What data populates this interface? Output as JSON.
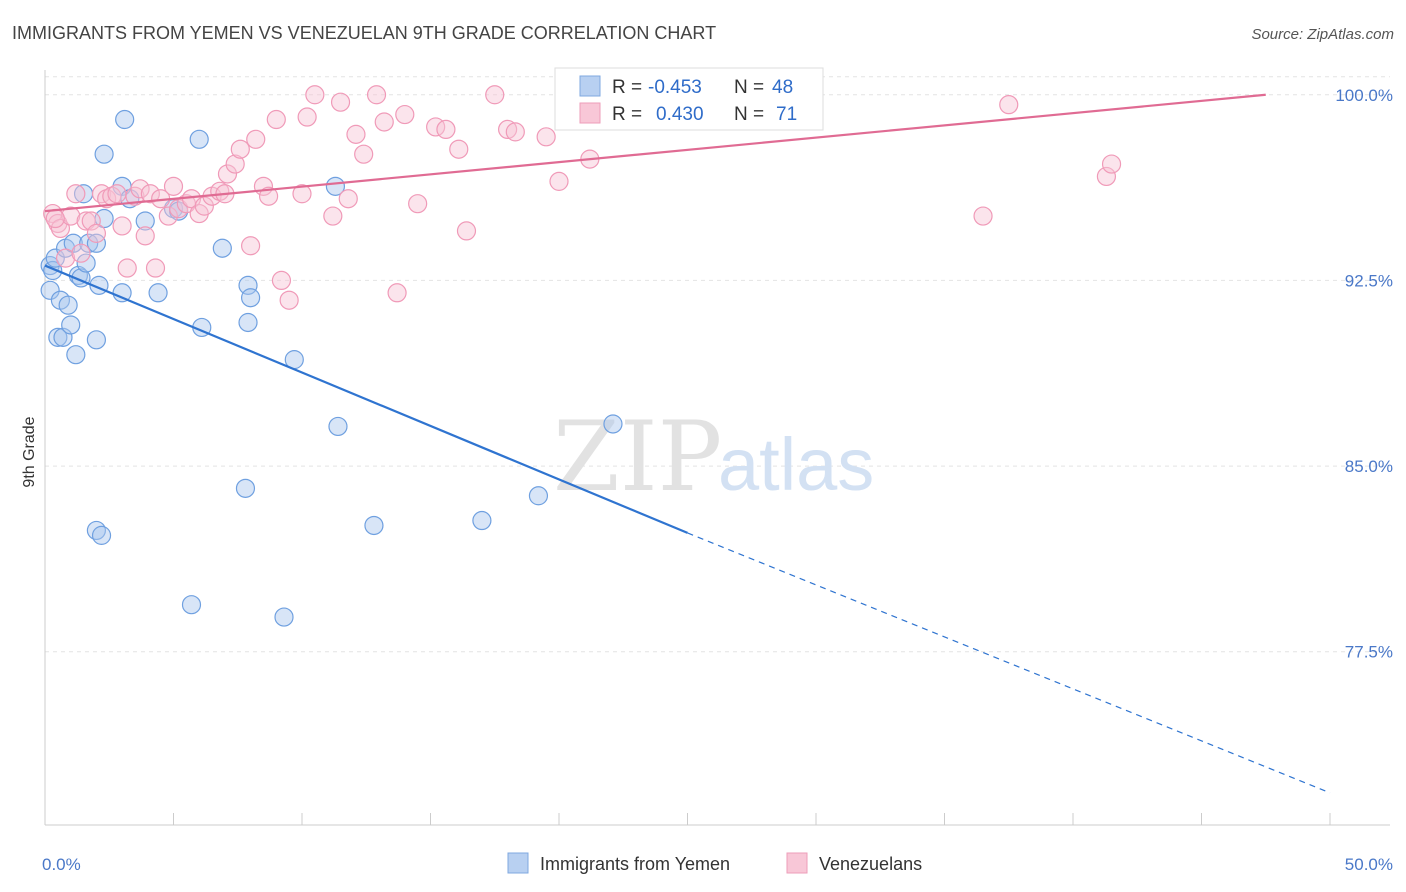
{
  "header": {
    "title": "IMMIGRANTS FROM YEMEN VS VENEZUELAN 9TH GRADE CORRELATION CHART",
    "source": "Source: ZipAtlas.com"
  },
  "watermark": {
    "zip": "ZIP",
    "atlas": "atlas"
  },
  "legend_box": {
    "rows": [
      {
        "r_label": "R = ",
        "r_value": "-0.453",
        "n_label": "N = ",
        "n_value": "48"
      },
      {
        "r_label": "R = ",
        "r_value": "0.430",
        "n_label": "N = ",
        "n_value": "71"
      }
    ]
  },
  "bottom_legend": {
    "items": [
      {
        "label": "Immigrants from Yemen"
      },
      {
        "label": "Venezuelans"
      }
    ]
  },
  "chart_data": {
    "type": "scatter",
    "title": "IMMIGRANTS FROM YEMEN VS VENEZUELAN 9TH GRADE CORRELATION CHART",
    "xlabel": "",
    "ylabel": "9th Grade",
    "xlim": [
      0,
      50
    ],
    "ylim": [
      70.5,
      101.0
    ],
    "x_tick_labels": [
      {
        "value": 0,
        "label": "0.0%"
      },
      {
        "value": 50,
        "label": "50.0%"
      }
    ],
    "y_tick_labels": [
      {
        "value": 100,
        "label": "100.0%"
      },
      {
        "value": 92.5,
        "label": "92.5%"
      },
      {
        "value": 85,
        "label": "85.0%"
      },
      {
        "value": 77.5,
        "label": "77.5%"
      }
    ],
    "grid": true,
    "legend_position": "top-center",
    "series": [
      {
        "name": "Immigrants from Yemen",
        "color": "#6fa0e0",
        "fill": "#a9c6ee",
        "line_color": "#2f74d0",
        "r": -0.453,
        "n": 48,
        "trend": {
          "x_start": 0,
          "y_start": 93.1,
          "x_solid_end": 25,
          "y_solid_end": 82.3,
          "x_dash_end": 50,
          "y_dash_end": 71.8
        },
        "points": [
          [
            0.2,
            93.1
          ],
          [
            0.3,
            92.9
          ],
          [
            0.4,
            93.4
          ],
          [
            0.2,
            92.1
          ],
          [
            0.6,
            91.7
          ],
          [
            0.5,
            90.2
          ],
          [
            0.9,
            91.5
          ],
          [
            0.7,
            90.2
          ],
          [
            1.0,
            90.7
          ],
          [
            1.2,
            89.5
          ],
          [
            0.8,
            93.8
          ],
          [
            1.1,
            94.0
          ],
          [
            1.3,
            92.7
          ],
          [
            1.4,
            92.6
          ],
          [
            1.5,
            96.0
          ],
          [
            1.6,
            93.2
          ],
          [
            1.7,
            94.0
          ],
          [
            2.0,
            94.0
          ],
          [
            2.0,
            90.1
          ],
          [
            2.1,
            92.3
          ],
          [
            2.3,
            95.0
          ],
          [
            2.3,
            97.6
          ],
          [
            3.0,
            92.0
          ],
          [
            3.0,
            96.3
          ],
          [
            3.1,
            99.0
          ],
          [
            3.3,
            95.8
          ],
          [
            3.9,
            94.9
          ],
          [
            4.4,
            92.0
          ],
          [
            5.0,
            95.4
          ],
          [
            5.2,
            95.3
          ],
          [
            6.0,
            98.2
          ],
          [
            6.1,
            90.6
          ],
          [
            6.9,
            93.8
          ],
          [
            7.9,
            92.3
          ],
          [
            7.9,
            90.8
          ],
          [
            8.0,
            91.8
          ],
          [
            7.8,
            84.1
          ],
          [
            9.7,
            89.3
          ],
          [
            11.3,
            96.3
          ],
          [
            11.4,
            86.6
          ],
          [
            12.8,
            82.6
          ],
          [
            17.0,
            82.8
          ],
          [
            19.2,
            83.8
          ],
          [
            22.1,
            86.7
          ],
          [
            2.0,
            82.4
          ],
          [
            2.2,
            82.2
          ],
          [
            5.7,
            79.4
          ],
          [
            9.3,
            78.9
          ]
        ]
      },
      {
        "name": "Venezuelans",
        "color": "#f09ab8",
        "fill": "#f7c3d4",
        "line_color": "#e06b93",
        "r": 0.43,
        "n": 71,
        "trend": {
          "x_start": 0,
          "y_start": 95.3,
          "x_end": 47.5,
          "y_end": 100.0
        },
        "points": [
          [
            0.3,
            95.2
          ],
          [
            0.5,
            94.8
          ],
          [
            0.6,
            94.6
          ],
          [
            0.8,
            93.4
          ],
          [
            1.0,
            95.1
          ],
          [
            1.2,
            96.0
          ],
          [
            1.4,
            93.6
          ],
          [
            1.6,
            94.9
          ],
          [
            1.8,
            94.9
          ],
          [
            2.0,
            94.4
          ],
          [
            2.2,
            96.0
          ],
          [
            2.4,
            95.8
          ],
          [
            2.6,
            95.9
          ],
          [
            2.8,
            96.0
          ],
          [
            3.0,
            94.7
          ],
          [
            3.2,
            93.0
          ],
          [
            3.5,
            95.9
          ],
          [
            3.7,
            96.2
          ],
          [
            3.9,
            94.3
          ],
          [
            4.1,
            96.0
          ],
          [
            4.3,
            93.0
          ],
          [
            4.5,
            95.8
          ],
          [
            4.8,
            95.1
          ],
          [
            5.0,
            96.3
          ],
          [
            5.2,
            95.4
          ],
          [
            5.5,
            95.6
          ],
          [
            5.7,
            95.8
          ],
          [
            6.0,
            95.2
          ],
          [
            6.2,
            95.5
          ],
          [
            6.5,
            95.9
          ],
          [
            6.8,
            96.1
          ],
          [
            7.0,
            96.0
          ],
          [
            7.1,
            96.8
          ],
          [
            7.4,
            97.2
          ],
          [
            7.6,
            97.8
          ],
          [
            8.0,
            93.9
          ],
          [
            8.2,
            98.2
          ],
          [
            8.5,
            96.3
          ],
          [
            8.7,
            95.9
          ],
          [
            9.0,
            99.0
          ],
          [
            9.2,
            92.5
          ],
          [
            9.5,
            91.7
          ],
          [
            10.0,
            96.0
          ],
          [
            10.2,
            99.1
          ],
          [
            10.5,
            100.0
          ],
          [
            11.2,
            95.1
          ],
          [
            11.5,
            99.7
          ],
          [
            11.8,
            95.8
          ],
          [
            12.1,
            98.4
          ],
          [
            12.4,
            97.6
          ],
          [
            12.9,
            100.0
          ],
          [
            13.2,
            98.9
          ],
          [
            13.7,
            92.0
          ],
          [
            14.0,
            99.2
          ],
          [
            14.5,
            95.6
          ],
          [
            15.2,
            98.7
          ],
          [
            15.6,
            98.6
          ],
          [
            16.1,
            97.8
          ],
          [
            16.4,
            94.5
          ],
          [
            17.5,
            100.0
          ],
          [
            18.0,
            98.6
          ],
          [
            18.3,
            98.5
          ],
          [
            19.5,
            98.3
          ],
          [
            20.0,
            96.5
          ],
          [
            21.2,
            97.4
          ],
          [
            21.7,
            99.9
          ],
          [
            36.5,
            95.1
          ],
          [
            37.5,
            99.6
          ],
          [
            41.3,
            96.7
          ],
          [
            41.5,
            97.2
          ],
          [
            0.4,
            95.0
          ]
        ]
      }
    ]
  }
}
